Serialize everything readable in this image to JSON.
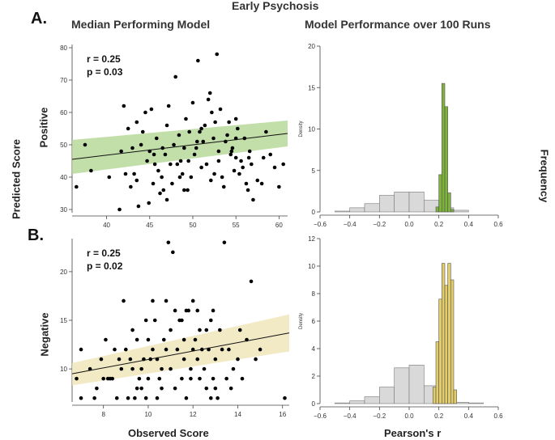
{
  "figure": {
    "suptitle": "Early Psychosis",
    "panel_a": "A.",
    "panel_b": "B.",
    "left_title": "Median Performing Model",
    "right_title": "Model Performance over 100 Runs",
    "left_ylabel": "Predicted Score",
    "right_ylabel": "Frequency",
    "row1_label": "Positive",
    "row2_label": "Negative",
    "scatter_xlabel": "Observed Score",
    "hist_xlabel": "Pearson's r"
  },
  "colors": {
    "green_band": "#b7d99a",
    "green_bar": "#7db33a",
    "yellow_band": "#efe6bb",
    "yellow_bar": "#e3cc6a",
    "gray_bar": "#d9d9d9",
    "point": "#000000"
  },
  "chart_data": [
    {
      "type": "scatter",
      "name_hint": "positive-scatter",
      "annotation": [
        "r = 0.25",
        "p = 0.03"
      ],
      "xlim": [
        36,
        61
      ],
      "ylim": [
        29,
        81
      ],
      "xticks": [
        40,
        45,
        50,
        55,
        60
      ],
      "yticks": [
        30,
        40,
        50,
        60,
        70,
        80
      ],
      "fit": {
        "x": [
          36,
          61
        ],
        "y": [
          45.5,
          53.5
        ]
      },
      "band": {
        "x": [
          36,
          61
        ],
        "lower": [
          41,
          49.5
        ],
        "upper": [
          51.5,
          57.5
        ]
      },
      "points": [
        [
          36.5,
          37
        ],
        [
          37.5,
          50
        ],
        [
          38.2,
          42
        ],
        [
          40.3,
          40
        ],
        [
          41.5,
          30
        ],
        [
          41.7,
          48
        ],
        [
          42,
          62
        ],
        [
          42.2,
          41
        ],
        [
          42.5,
          55
        ],
        [
          42.8,
          37
        ],
        [
          43,
          49
        ],
        [
          43.2,
          41
        ],
        [
          43.5,
          57
        ],
        [
          43.7,
          31
        ],
        [
          44.2,
          54
        ],
        [
          44.5,
          60
        ],
        [
          44.7,
          45
        ],
        [
          44.9,
          32
        ],
        [
          45,
          48
        ],
        [
          45.2,
          61
        ],
        [
          45.4,
          38
        ],
        [
          45.6,
          44
        ],
        [
          45.8,
          52
        ],
        [
          46,
          42
        ],
        [
          46.2,
          35
        ],
        [
          46.4,
          40
        ],
        [
          46.6,
          36
        ],
        [
          46.8,
          47
        ],
        [
          47,
          56
        ],
        [
          47.2,
          62
        ],
        [
          47.4,
          44
        ],
        [
          47.6,
          38
        ],
        [
          47.8,
          50
        ],
        [
          48,
          71
        ],
        [
          48.2,
          44
        ],
        [
          48.4,
          53
        ],
        [
          48.6,
          45
        ],
        [
          48.8,
          41
        ],
        [
          49,
          49
        ],
        [
          49.2,
          58
        ],
        [
          49.4,
          36
        ],
        [
          49.6,
          54
        ],
        [
          49.8,
          40
        ],
        [
          50,
          63
        ],
        [
          50.2,
          47
        ],
        [
          50.4,
          49
        ],
        [
          50.6,
          76
        ],
        [
          50.8,
          54
        ],
        [
          51,
          55
        ],
        [
          51.2,
          51
        ],
        [
          51.4,
          56
        ],
        [
          51.6,
          44
        ],
        [
          51.8,
          64
        ],
        [
          52,
          66
        ],
        [
          52.2,
          60
        ],
        [
          52.4,
          52
        ],
        [
          52.6,
          57
        ],
        [
          52.8,
          78
        ],
        [
          53,
          48
        ],
        [
          53.2,
          61
        ],
        [
          53.4,
          40
        ],
        [
          53.6,
          37
        ],
        [
          53.8,
          51
        ],
        [
          54,
          53
        ],
        [
          54.2,
          57
        ],
        [
          54.4,
          47
        ],
        [
          54.6,
          49
        ],
        [
          54.8,
          42
        ],
        [
          55,
          58
        ],
        [
          55.2,
          55
        ],
        [
          55.4,
          41
        ],
        [
          55.6,
          45
        ],
        [
          55.8,
          43
        ],
        [
          56,
          52
        ],
        [
          56.2,
          38
        ],
        [
          56.4,
          36
        ],
        [
          56.6,
          48
        ],
        [
          56.8,
          44
        ],
        [
          57,
          33
        ],
        [
          57.5,
          39
        ],
        [
          58,
          38
        ],
        [
          58.5,
          54
        ],
        [
          59,
          47
        ],
        [
          59.5,
          43
        ],
        [
          60,
          37
        ],
        [
          60.5,
          44
        ],
        [
          44,
          50
        ],
        [
          47,
          33
        ],
        [
          49,
          36
        ],
        [
          51,
          43
        ],
        [
          53,
          45
        ],
        [
          55,
          52
        ],
        [
          48.5,
          40
        ],
        [
          52.5,
          41
        ],
        [
          46.5,
          49
        ],
        [
          54.5,
          48
        ],
        [
          50.5,
          51
        ],
        [
          45.5,
          47
        ],
        [
          56.5,
          46
        ],
        [
          58.2,
          46
        ],
        [
          52.1,
          39
        ],
        [
          49.5,
          45
        ],
        [
          43.5,
          39
        ],
        [
          55,
          46
        ]
      ]
    },
    {
      "type": "bar",
      "name_hint": "positive-histogram",
      "ylabel": "Density",
      "xlim": [
        -0.6,
        0.6
      ],
      "ylim": [
        0,
        20
      ],
      "xticks": [
        -0.6,
        -0.4,
        -0.2,
        0.0,
        0.2,
        0.4,
        0.6
      ],
      "yticks": [
        0,
        5,
        10,
        15,
        20
      ],
      "null_bins": {
        "edges": [
          -0.5,
          -0.4,
          -0.3,
          -0.2,
          -0.1,
          0.0,
          0.1,
          0.2,
          0.3,
          0.4
        ],
        "values": [
          0.1,
          0.5,
          1.0,
          2.0,
          2.4,
          2.4,
          1.4,
          0.5,
          0.2
        ]
      },
      "model_bins": {
        "edges": [
          0.18,
          0.2,
          0.22,
          0.24,
          0.26,
          0.28,
          0.3
        ],
        "values": [
          0.6,
          4.5,
          15.5,
          12.7,
          2.3,
          0.3
        ]
      }
    },
    {
      "type": "scatter",
      "name_hint": "negative-scatter",
      "annotation": [
        "r = 0.25",
        "p = 0.02"
      ],
      "xlim": [
        6.6,
        16.3
      ],
      "ylim": [
        6.6,
        23.4
      ],
      "xticks": [
        8,
        10,
        12,
        14,
        16
      ],
      "yticks": [
        10,
        15,
        20
      ],
      "fit": {
        "x": [
          6.6,
          16.3
        ],
        "y": [
          9.5,
          13.7
        ]
      },
      "band": {
        "x": [
          6.6,
          16.3
        ],
        "lower": [
          8.3,
          11.8
        ],
        "upper": [
          10.6,
          15.6
        ]
      },
      "points": [
        [
          6.8,
          9
        ],
        [
          7.0,
          12
        ],
        [
          7.0,
          7
        ],
        [
          7.4,
          10
        ],
        [
          7.6,
          7
        ],
        [
          7.7,
          8
        ],
        [
          7.9,
          11
        ],
        [
          8.0,
          9
        ],
        [
          8.1,
          13
        ],
        [
          8.2,
          9
        ],
        [
          8.3,
          9
        ],
        [
          8.4,
          9
        ],
        [
          8.6,
          7
        ],
        [
          8.8,
          10
        ],
        [
          8.9,
          17
        ],
        [
          9.0,
          12
        ],
        [
          9.1,
          7
        ],
        [
          9.2,
          11
        ],
        [
          9.3,
          10
        ],
        [
          9.4,
          7
        ],
        [
          9.5,
          8
        ],
        [
          9.6,
          9
        ],
        [
          9.7,
          10
        ],
        [
          9.8,
          11
        ],
        [
          9.9,
          7
        ],
        [
          10.0,
          13
        ],
        [
          10.1,
          11
        ],
        [
          10.2,
          12
        ],
        [
          10.3,
          15
        ],
        [
          10.4,
          7
        ],
        [
          10.5,
          9
        ],
        [
          10.6,
          8
        ],
        [
          10.7,
          13
        ],
        [
          10.8,
          17
        ],
        [
          10.9,
          23
        ],
        [
          11.0,
          10
        ],
        [
          11.1,
          22
        ],
        [
          11.2,
          16
        ],
        [
          11.3,
          12
        ],
        [
          11.4,
          15
        ],
        [
          11.5,
          9
        ],
        [
          11.6,
          11
        ],
        [
          11.7,
          7
        ],
        [
          11.8,
          16
        ],
        [
          11.9,
          10
        ],
        [
          12.0,
          17
        ],
        [
          12.1,
          13
        ],
        [
          12.2,
          11
        ],
        [
          12.3,
          14
        ],
        [
          12.4,
          12
        ],
        [
          12.5,
          10
        ],
        [
          12.6,
          8
        ],
        [
          12.7,
          12
        ],
        [
          12.8,
          7
        ],
        [
          12.9,
          9
        ],
        [
          13.0,
          11
        ],
        [
          13.1,
          7
        ],
        [
          13.2,
          14
        ],
        [
          13.4,
          23
        ],
        [
          13.6,
          12
        ],
        [
          13.8,
          10
        ],
        [
          14.0,
          11
        ],
        [
          14.2,
          9
        ],
        [
          14.4,
          13
        ],
        [
          14.6,
          19
        ],
        [
          14.8,
          11
        ],
        [
          15.0,
          12
        ],
        [
          16.1,
          7
        ],
        [
          8.5,
          12
        ],
        [
          9.9,
          15
        ],
        [
          10.8,
          12
        ],
        [
          11.5,
          15
        ],
        [
          12.2,
          16
        ],
        [
          12.9,
          16
        ],
        [
          13.5,
          9
        ],
        [
          11.0,
          14
        ],
        [
          10.2,
          17
        ],
        [
          9.3,
          14
        ],
        [
          12.6,
          14
        ],
        [
          11.9,
          9
        ],
        [
          10.6,
          10
        ],
        [
          13.7,
          8
        ],
        [
          12.3,
          9
        ],
        [
          11.2,
          8
        ],
        [
          10.0,
          9
        ],
        [
          9.7,
          8
        ],
        [
          11.6,
          13
        ],
        [
          12.8,
          15
        ],
        [
          13.3,
          12
        ],
        [
          14.1,
          14
        ],
        [
          10.4,
          11
        ],
        [
          11.7,
          16
        ],
        [
          12.0,
          12
        ],
        [
          13.0,
          8
        ],
        [
          9.5,
          13
        ],
        [
          8.7,
          11
        ]
      ]
    },
    {
      "type": "bar",
      "name_hint": "negative-histogram",
      "ylabel": "Density",
      "xlim": [
        -0.6,
        0.6
      ],
      "ylim": [
        0,
        12
      ],
      "xticks": [
        -0.6,
        -0.4,
        -0.2,
        0.0,
        0.2,
        0.4,
        0.6
      ],
      "yticks": [
        0,
        2,
        4,
        6,
        8,
        10,
        12
      ],
      "null_bins": {
        "edges": [
          -0.5,
          -0.4,
          -0.3,
          -0.2,
          -0.1,
          0.0,
          0.1,
          0.2,
          0.3,
          0.4,
          0.5
        ],
        "values": [
          0.05,
          0.2,
          0.5,
          1.2,
          2.6,
          2.8,
          1.3,
          0.35,
          0.1,
          0.05
        ]
      },
      "model_bins": {
        "edges": [
          0.16,
          0.18,
          0.2,
          0.22,
          0.24,
          0.26,
          0.28,
          0.3,
          0.32
        ],
        "values": [
          1.2,
          4.5,
          7.6,
          10.2,
          8.6,
          10.2,
          9.0,
          1.0
        ]
      }
    }
  ]
}
